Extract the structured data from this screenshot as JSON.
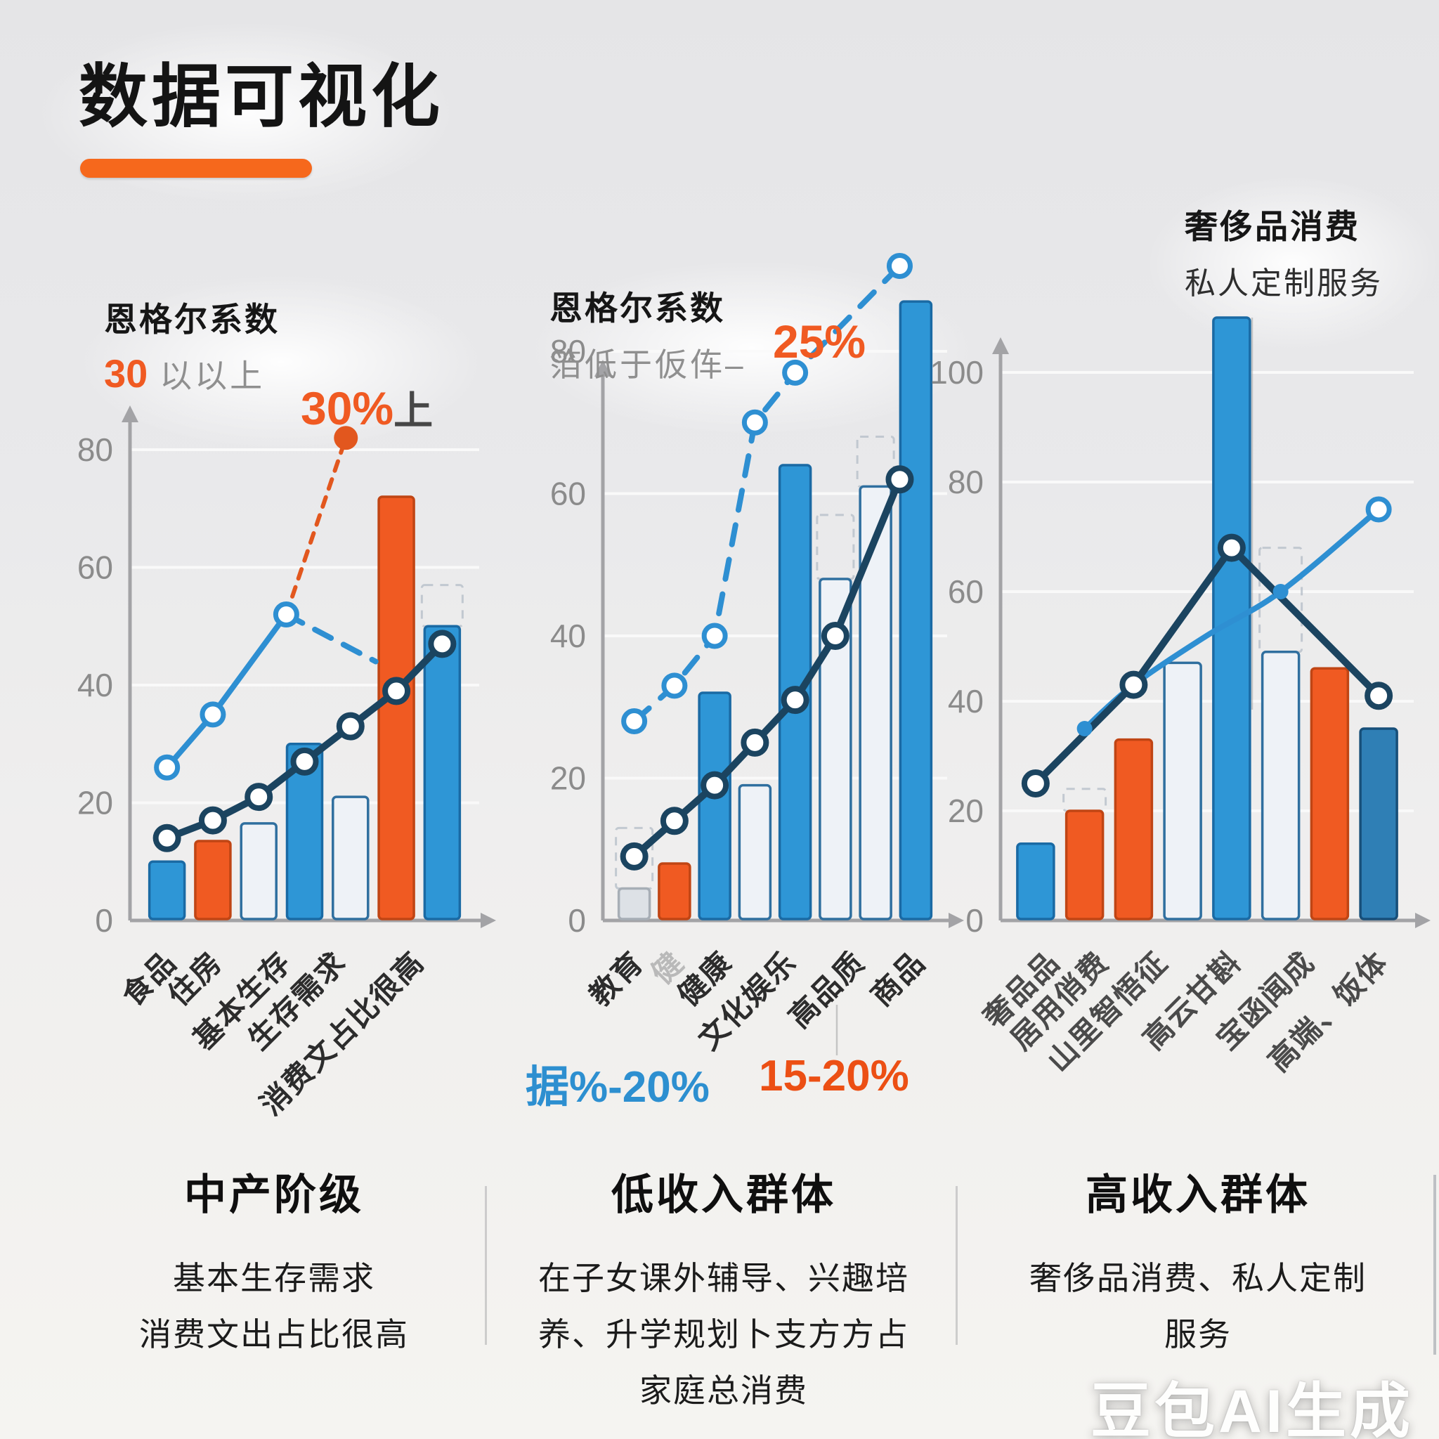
{
  "page": {
    "title": "数据可视化",
    "watermark": "豆包AI生成"
  },
  "colors": {
    "accent_orange": "#f05a22",
    "bar_blue": "#2e96d6",
    "bar_blue_stroke": "#1a6aa4",
    "bar_orange": "#f05a22",
    "bar_orange_stroke": "#c04514",
    "bar_white": "#eef2f7",
    "bar_white_stroke": "#2f6f9f",
    "bar_gray": "#dde1e6",
    "bar_gray_stroke": "#a7aeb6",
    "bar_darkblue": "#2f7fb5",
    "bar_darkblue_stroke": "#174f79",
    "line_navy": "#1b4460",
    "line_lightblue": "#2e8fd2",
    "line_orange": "#e2571e",
    "axis_gray": "#a3a3a6",
    "grid_white": "#fafafa",
    "tick_gray": "#8b8b8b",
    "label_dark": "#2c2c2c",
    "label_faint": "#b9b9b9",
    "ghost_gray": "#b6bfc9"
  },
  "chart_data": [
    {
      "type": "bar+line",
      "title": "恩格尔系数",
      "subtitle_accent": "30",
      "subtitle_rest": " 以以上",
      "ylim": [
        0,
        88
      ],
      "yticks": [
        0,
        20,
        40,
        60,
        80
      ],
      "bars": [
        [
          10,
          "blue"
        ],
        [
          13.5,
          "orange"
        ],
        [
          16.5,
          "white"
        ],
        [
          30,
          "blue"
        ],
        [
          21,
          "white"
        ],
        [
          72,
          "orange"
        ],
        [
          50,
          "blue"
        ]
      ],
      "ghosts": [
        [
          6,
          50,
          57
        ]
      ],
      "series": [
        {
          "color": "line_lightblue",
          "width": 8,
          "dash": null,
          "smooth": false,
          "points": [
            [
              0,
              26,
              "openB"
            ],
            [
              1,
              35,
              "openB"
            ],
            [
              2.6,
              52,
              "openB"
            ]
          ]
        },
        {
          "color": "line_lightblue",
          "width": 8,
          "dash": "26 20",
          "smooth": false,
          "points": [
            [
              2.6,
              52,
              null
            ],
            [
              4.55,
              44,
              null
            ]
          ]
        },
        {
          "color": "line_orange",
          "width": 6,
          "dash": "14 13",
          "smooth": false,
          "points": [
            [
              2.6,
              52,
              null
            ],
            [
              3.9,
              82,
              "dotOrange"
            ]
          ]
        },
        {
          "color": "line_navy",
          "width": 10,
          "dash": null,
          "smooth": false,
          "points": [
            [
              0,
              14,
              "open"
            ],
            [
              1,
              17,
              "open"
            ],
            [
              2,
              21,
              "open"
            ],
            [
              3,
              27,
              "open"
            ],
            [
              4,
              33,
              "open"
            ],
            [
              5,
              39,
              "open"
            ],
            [
              6,
              47,
              "open"
            ]
          ]
        }
      ],
      "categories": [
        {
          "t": "食品",
          "i": 0
        },
        {
          "t": "住房",
          "i": 1
        },
        {
          "t": "基本生存",
          "i": 2.5
        },
        {
          "t": "生存需求",
          "i": 3.7
        },
        {
          "t": "消费文占比很高",
          "i": 5.4
        }
      ]
    },
    {
      "type": "bar+line",
      "title": "恩格尔系数",
      "subtitle": "箔低于仮伡–",
      "ylim": [
        0,
        95
      ],
      "yticks": [
        0,
        20,
        40,
        60,
        80
      ],
      "bars": [
        [
          4.5,
          "gray"
        ],
        [
          8,
          "orange"
        ],
        [
          32,
          "blue"
        ],
        [
          19,
          "white"
        ],
        [
          64,
          "blue"
        ],
        [
          48,
          "white"
        ],
        [
          61,
          "white"
        ],
        [
          87,
          "blue"
        ]
      ],
      "ghosts": [
        [
          0,
          4.5,
          13
        ],
        [
          5,
          48,
          57
        ],
        [
          6,
          61,
          68
        ]
      ],
      "series": [
        {
          "color": "line_lightblue",
          "width": 8,
          "dash": "28 22",
          "smooth": false,
          "points": [
            [
              0,
              28,
              "openB"
            ],
            [
              1,
              33,
              "openB"
            ],
            [
              2,
              40,
              "openB"
            ],
            [
              3,
              70,
              "openB"
            ],
            [
              4,
              77,
              "openB"
            ],
            [
              6.6,
              92,
              "openB"
            ]
          ]
        },
        {
          "color": "line_navy",
          "width": 10,
          "dash": null,
          "smooth": false,
          "points": [
            [
              0,
              9,
              "open"
            ],
            [
              1,
              14,
              "open"
            ],
            [
              2,
              19,
              "open"
            ],
            [
              3,
              25,
              "open"
            ],
            [
              4,
              31,
              "open"
            ],
            [
              5,
              40,
              "open"
            ],
            [
              6.6,
              62,
              "open"
            ]
          ]
        }
      ],
      "categories": [
        {
          "t": "教育",
          "i": 0
        },
        {
          "t": "健",
          "i": 1,
          "faint": true
        },
        {
          "t": "健康",
          "i": 2.2
        },
        {
          "t": "文化娱乐",
          "i": 3.8
        },
        {
          "t": "高品质",
          "i": 5.5
        },
        {
          "t": "商品",
          "i": 7
        }
      ]
    },
    {
      "type": "bar+line",
      "title": "奢侈品消费",
      "subtitle": "私人定制服务",
      "ylim": [
        0,
        112
      ],
      "yticks": [
        0,
        20,
        40,
        60,
        80,
        100
      ],
      "bars": [
        [
          14,
          "blue"
        ],
        [
          20,
          "orange"
        ],
        [
          33,
          "orange"
        ],
        [
          47,
          "white"
        ],
        [
          110,
          "blue"
        ],
        [
          49,
          "white"
        ],
        [
          46,
          "orange"
        ],
        [
          35,
          "darkblue"
        ]
      ],
      "ghosts": [
        [
          1,
          20,
          24
        ],
        [
          5,
          49,
          68
        ]
      ],
      "series": [
        {
          "color": "line_lightblue",
          "width": 8,
          "dash": null,
          "smooth": true,
          "points": [
            [
              1,
              35,
              "dotB"
            ],
            [
              2,
              43,
              null
            ],
            [
              3.5,
              52,
              null
            ],
            [
              5,
              60,
              "dotB"
            ],
            [
              7,
              75,
              "openB"
            ]
          ]
        },
        {
          "color": "line_navy",
          "width": 10,
          "dash": null,
          "smooth": false,
          "points": [
            [
              0,
              25,
              "open"
            ],
            [
              2,
              43,
              "open"
            ],
            [
              4,
              68,
              "open"
            ],
            [
              7,
              41,
              "open"
            ]
          ]
        }
      ],
      "categories": [
        {
          "t": "奢品品",
          "i": 0.3
        },
        {
          "t": "居用俏费",
          "i": 1.3
        },
        {
          "t": "山里智悟征",
          "i": 2.5
        },
        {
          "t": "高云甘斟",
          "i": 4
        },
        {
          "t": "宝函闻成",
          "i": 5.5
        },
        {
          "t": "高端、饭体",
          "i": 7
        }
      ]
    }
  ],
  "annotations": {
    "c1_accent": "30%",
    "c1_rest": "上",
    "c2_top": "25%",
    "c2_blue": "据%-20%",
    "c2_orange": "15-20%"
  },
  "footer": {
    "sections": [
      {
        "title": "中产阶级",
        "lines": [
          "基本生存需求",
          "消费文出占比很高"
        ]
      },
      {
        "title": "低收入群体",
        "lines": [
          "在子女课外辅导、兴趣培",
          "养、升学规划卜支方方占",
          "家庭总消费"
        ]
      },
      {
        "title": "高收入群体",
        "lines": [
          "奢侈品消费、私人定制",
          "服务"
        ]
      }
    ]
  }
}
